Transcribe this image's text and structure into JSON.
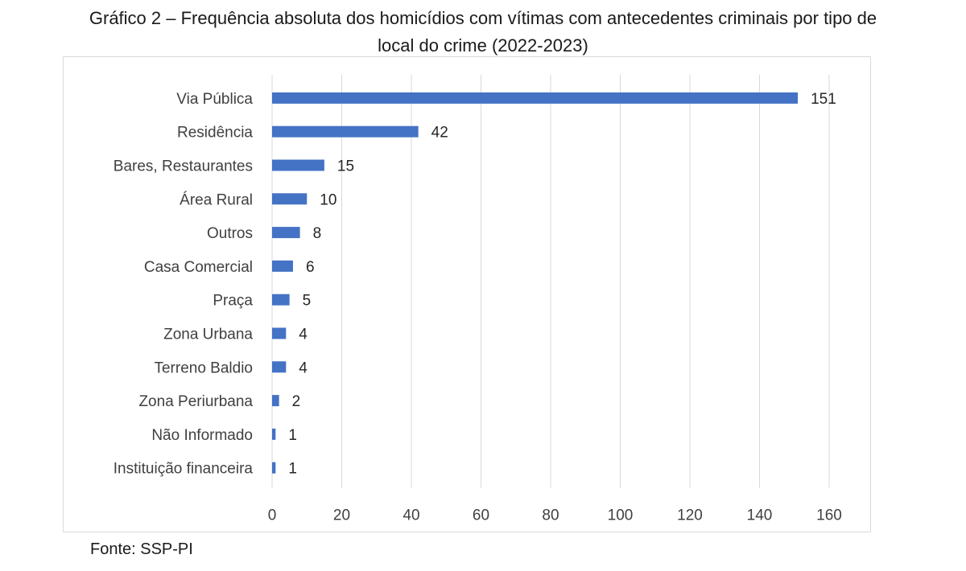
{
  "title_line1": "Gráfico 2 – Frequência absoluta dos homicídios com vítimas com antecedentes criminais por tipo de",
  "title_line2": "local do crime (2022-2023)",
  "source": "Fonte: SSP-PI",
  "colors": {
    "bar": "#4472c4",
    "grid": "#d9d9d9",
    "text": "#404040"
  },
  "chart_data": {
    "type": "bar",
    "orientation": "horizontal",
    "title": "Gráfico 2 – Frequência absoluta dos homicídios com vítimas com antecedentes criminais por tipo de local do crime (2022-2023)",
    "categories": [
      "Via Pública",
      "Residência",
      "Bares, Restaurantes",
      "Área Rural",
      "Outros",
      "Casa Comercial",
      "Praça",
      "Zona Urbana",
      "Terreno Baldio",
      "Zona Periurbana",
      "Não Informado",
      "Instituição financeira"
    ],
    "values": [
      151,
      42,
      15,
      10,
      8,
      6,
      5,
      4,
      4,
      2,
      1,
      1
    ],
    "xlim": [
      0,
      160
    ],
    "xticks": [
      0,
      20,
      40,
      60,
      80,
      100,
      120,
      140,
      160
    ],
    "grid": true,
    "legend": false,
    "data_labels": true
  }
}
